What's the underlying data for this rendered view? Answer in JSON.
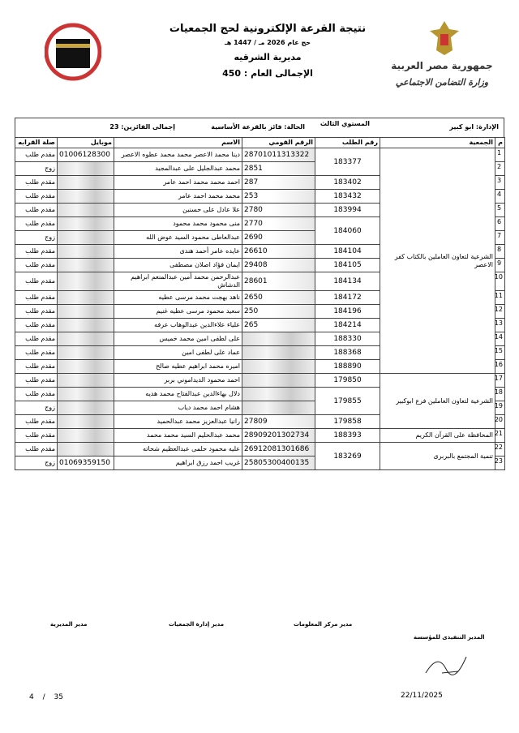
{
  "header": {
    "title": "نتيجة القرعة الإلكترونية لحج الجمعيات",
    "subtitle": "حج عام 2026 مـ / 1447 هـ",
    "directorate": "مديرية الشرقيه",
    "total": "الإجمالى العام : 450",
    "logo_right": {
      "line1": "جمهورية مصر العربية",
      "line2": "وزارة التضامن الاجتماعي"
    }
  },
  "info": {
    "administration": "الإدارة: ابو كبير",
    "level": "المستوي الثالث",
    "status": "الحالة: فائز بالقرعة الأساسية",
    "winners": "إجمالى الفائزين: 23"
  },
  "table": {
    "columns": [
      "م",
      "الجمعية",
      "رقم الطلب",
      "الرقم القومي",
      "الاسم",
      "موبايل",
      "صلة القرابه"
    ],
    "associations": [
      {
        "name": "الشرعية لتعاون العاملين بالكتاب كفر الاعصر",
        "requests": [
          {
            "number": "183377",
            "members": [
              {
                "n": 1,
                "name": "دينا محمد الاعصر محمد محمد عطوه الاعصر",
                "national_id": "28701011313322",
                "mobile": "01006128300",
                "relation": "مقدم طلب"
              },
              {
                "n": 2,
                "name": "محمد عبدالجليل على عبدالمجيد",
                "national_id": "2851",
                "mobile": null,
                "relation": "زوج"
              }
            ]
          },
          {
            "number": "183402",
            "members": [
              {
                "n": 3,
                "name": "احمد محمد محمد احمد عامر",
                "national_id": "287",
                "mobile": null,
                "relation": "مقدم طلب"
              }
            ]
          },
          {
            "number": "183432",
            "members": [
              {
                "n": 4,
                "name": "محمد محمد احمد عامر",
                "national_id": "253",
                "mobile": null,
                "relation": "مقدم طلب"
              }
            ]
          },
          {
            "number": "183994",
            "members": [
              {
                "n": 5,
                "name": "علا عادل على حسنين",
                "national_id": "2780",
                "mobile": null,
                "relation": "مقدم طلب"
              }
            ]
          },
          {
            "number": "184060",
            "members": [
              {
                "n": 6,
                "name": "منى محمود محمد محمود",
                "national_id": "2770",
                "mobile": null,
                "relation": "مقدم طلب"
              },
              {
                "n": 7,
                "name": "عبدالعاطى محمود السيد عوض الله",
                "national_id": "2690",
                "mobile": null,
                "relation": "زوج"
              }
            ]
          },
          {
            "number": "184104",
            "members": [
              {
                "n": 8,
                "name": "عايده عامر أحمد هندى",
                "national_id": "26610",
                "mobile": null,
                "relation": "مقدم طلب"
              }
            ]
          },
          {
            "number": "184105",
            "members": [
              {
                "n": 9,
                "name": "ايمان فؤاد اصلان مصطفى",
                "national_id": "29408",
                "mobile": null,
                "relation": "مقدم طلب"
              }
            ]
          },
          {
            "number": "184134",
            "members": [
              {
                "n": 10,
                "name": "عبدالرحمن محمد أمين عبدالمنعم ابراهيم الدشاش",
                "national_id": "28601",
                "mobile": null,
                "relation": "مقدم طلب"
              }
            ]
          },
          {
            "number": "184172",
            "members": [
              {
                "n": 11,
                "name": "ناهد بهجت محمد مرسى عطيه",
                "national_id": "2650",
                "mobile": null,
                "relation": "مقدم طلب"
              }
            ]
          },
          {
            "number": "184196",
            "members": [
              {
                "n": 12,
                "name": "سعيد محمود مرسى عطيه غنيم",
                "national_id": "250",
                "mobile": null,
                "relation": "مقدم طلب"
              }
            ]
          },
          {
            "number": "184214",
            "members": [
              {
                "n": 13,
                "name": "علياء علاءالدين عبدالوهاب عرفه",
                "national_id": "265",
                "mobile": null,
                "relation": "مقدم طلب"
              }
            ]
          },
          {
            "number": "188330",
            "members": [
              {
                "n": 14,
                "name": "على لطفى امين محمد خميس",
                "national_id": null,
                "mobile": null,
                "relation": "مقدم طلب"
              }
            ]
          },
          {
            "number": "188368",
            "members": [
              {
                "n": 15,
                "name": "عماد على لطفى امين",
                "national_id": null,
                "mobile": null,
                "relation": "مقدم طلب"
              }
            ]
          },
          {
            "number": "188890",
            "members": [
              {
                "n": 16,
                "name": "اميره محمد ابراهيم عطيه صالح",
                "national_id": null,
                "mobile": null,
                "relation": "مقدم طلب"
              }
            ]
          }
        ]
      },
      {
        "name": "الشرعية لتعاون العاملين فرع ابوكبير",
        "requests": [
          {
            "number": "179850",
            "members": [
              {
                "n": 17,
                "name": "احمد محمود الديداموني بربر",
                "national_id": null,
                "mobile": null,
                "relation": "مقدم طلب"
              }
            ]
          },
          {
            "number": "179855",
            "members": [
              {
                "n": 18,
                "name": "دلال بهاءالدين عبدالفتاح محمد هديه",
                "national_id": null,
                "mobile": null,
                "relation": "مقدم طلب"
              },
              {
                "n": 19,
                "name": "هشام احمد محمد دياب",
                "national_id": null,
                "mobile": null,
                "relation": "زوج"
              }
            ]
          },
          {
            "number": "179858",
            "members": [
              {
                "n": 20,
                "name": "رانيا عبدالعزيز محمد عبدالحميد",
                "national_id": "27809",
                "mobile": null,
                "relation": "مقدم طلب"
              }
            ]
          }
        ]
      },
      {
        "name": "المحافظة على القرآن الكريم",
        "requests": [
          {
            "number": "188393",
            "members": [
              {
                "n": 21,
                "name": "محمد عبدالحليم السيد محمد محمد",
                "national_id": "28909201302734",
                "mobile": null,
                "relation": "مقدم طلب"
              }
            ]
          }
        ]
      },
      {
        "name": "تنمية المجتمع بالبربرى",
        "requests": [
          {
            "number": "183269",
            "members": [
              {
                "n": 22,
                "name": "عليه محمود حلمى عبدالعظيم شحاته",
                "national_id": "26912081301686",
                "mobile": null,
                "relation": "مقدم طلب"
              },
              {
                "n": 23,
                "name": "غريب احمد رزق ابراهيم",
                "national_id": "25805300400135",
                "mobile": "01069359150",
                "relation": "زوج"
              }
            ]
          }
        ]
      }
    ]
  },
  "signatures": [
    "مدير المديرية",
    "مدير إدارة الجمعيات",
    "مدير مركز المعلومات",
    "المدير التنفيذى للمؤسسة"
  ],
  "footer": {
    "page": "4",
    "separator": "/",
    "pages": "35",
    "date": "22/11/2025"
  }
}
